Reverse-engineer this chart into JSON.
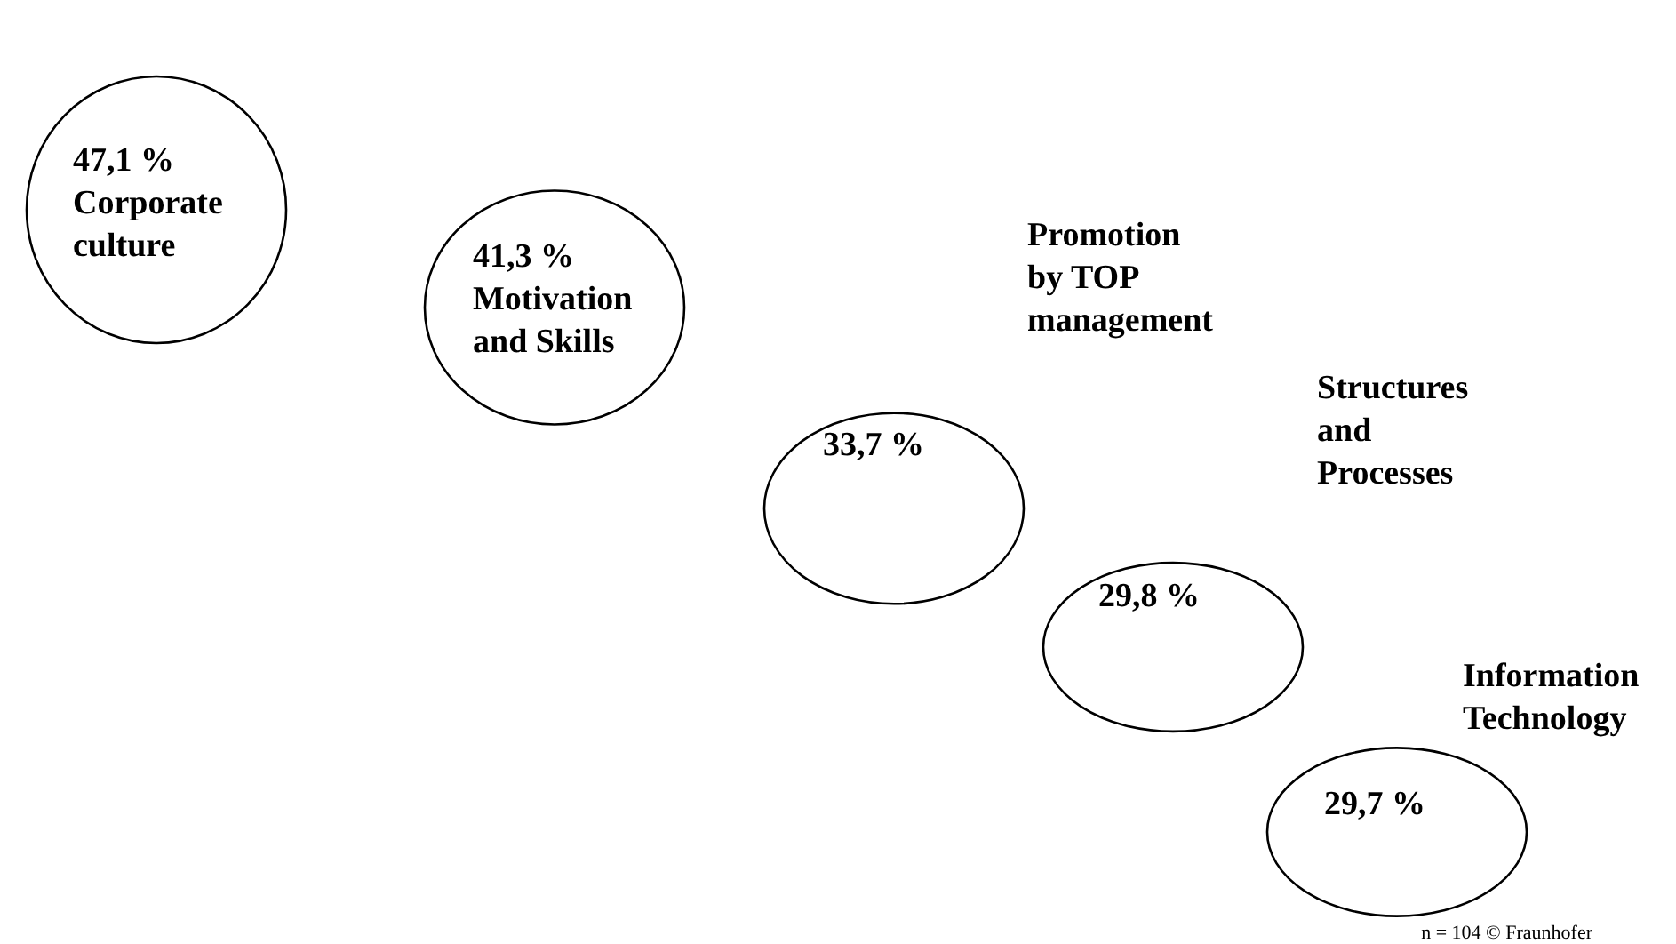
{
  "chart_data": {
    "type": "other",
    "categories": [
      "Corporate culture",
      "Motivation and Skills",
      "Promotion by TOP management",
      "Structures and Processes",
      "Information Technology"
    ],
    "values": [
      47.1,
      41.3,
      33.7,
      29.8,
      29.7
    ],
    "value_labels": [
      "47,1 %",
      "41,3 %",
      "33,7 %",
      "29,8 %",
      "29,7 %"
    ],
    "annotations": [
      "n = 104 © Fraunhofer"
    ]
  }
}
